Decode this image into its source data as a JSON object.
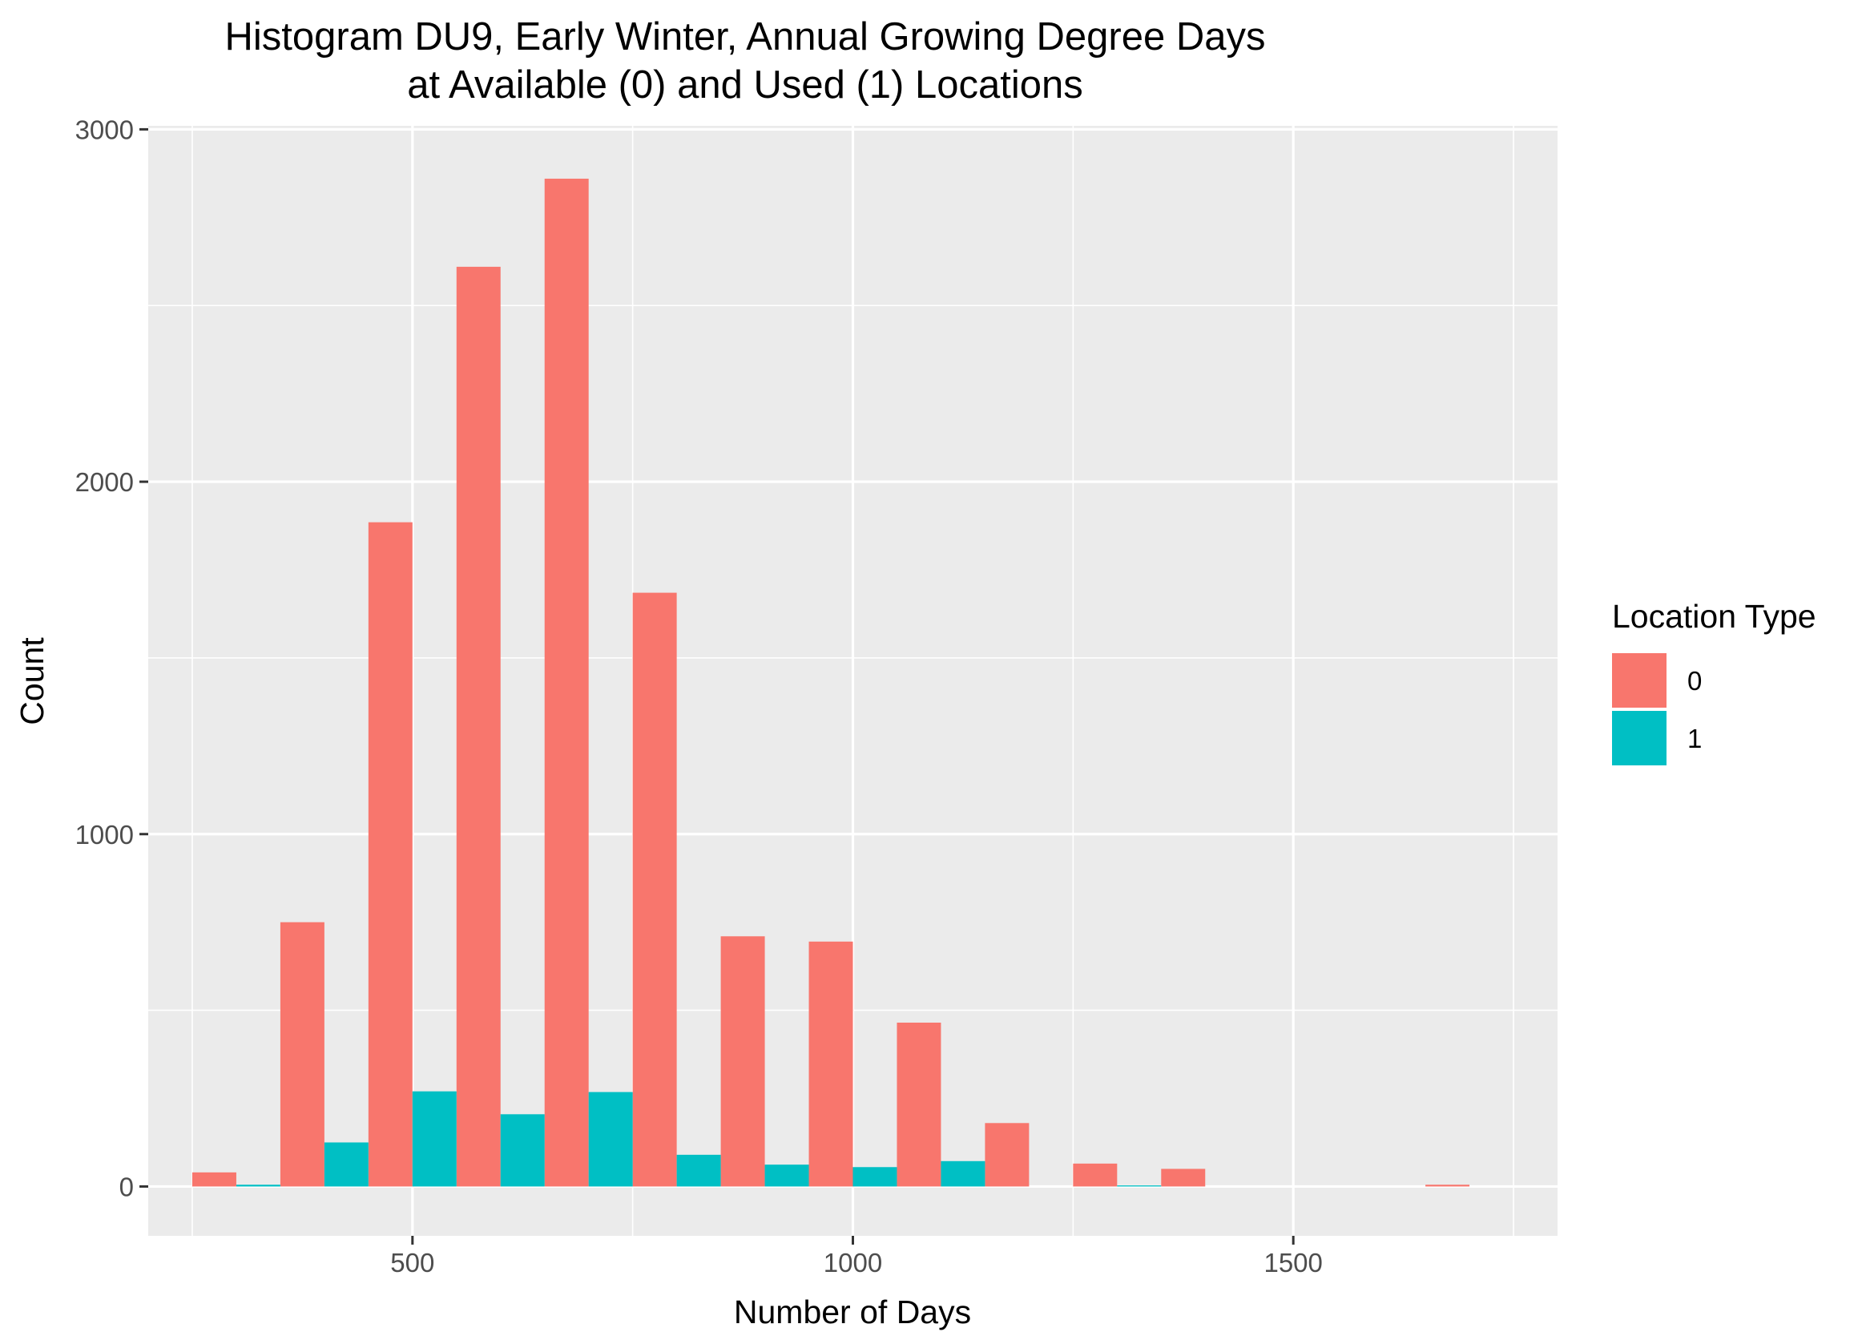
{
  "chart_data": {
    "type": "bar",
    "title_lines": [
      "Histogram DU9, Early Winter, Annual Growing Degree Days",
      "at Available (0) and Used (1) Locations"
    ],
    "xlabel": "Number of Days",
    "ylabel": "Count",
    "xlim": [
      200,
      1800
    ],
    "ylim": [
      -140,
      3010
    ],
    "x_ticks": [
      500,
      1000,
      1500
    ],
    "y_ticks": [
      0,
      1000,
      2000,
      3000
    ],
    "x_minor_grid": [
      250,
      750,
      1250,
      1750
    ],
    "y_minor_grid": [
      500,
      1500,
      2500
    ],
    "grid": true,
    "bin_width": 100,
    "legend": {
      "title": "Location Type",
      "position": "right"
    },
    "bin_centers": [
      300,
      400,
      500,
      600,
      700,
      800,
      900,
      1000,
      1100,
      1200,
      1300,
      1400,
      1500,
      1600,
      1700
    ],
    "series": [
      {
        "name": "0",
        "color": "#F8766D",
        "values": [
          40,
          750,
          1885,
          2610,
          2860,
          1685,
          710,
          695,
          465,
          180,
          65,
          50,
          0,
          0,
          5
        ]
      },
      {
        "name": "1",
        "color": "#00BFC4",
        "values": [
          5,
          125,
          270,
          205,
          268,
          90,
          62,
          55,
          72,
          0,
          3,
          0,
          0,
          0,
          0
        ]
      }
    ]
  }
}
